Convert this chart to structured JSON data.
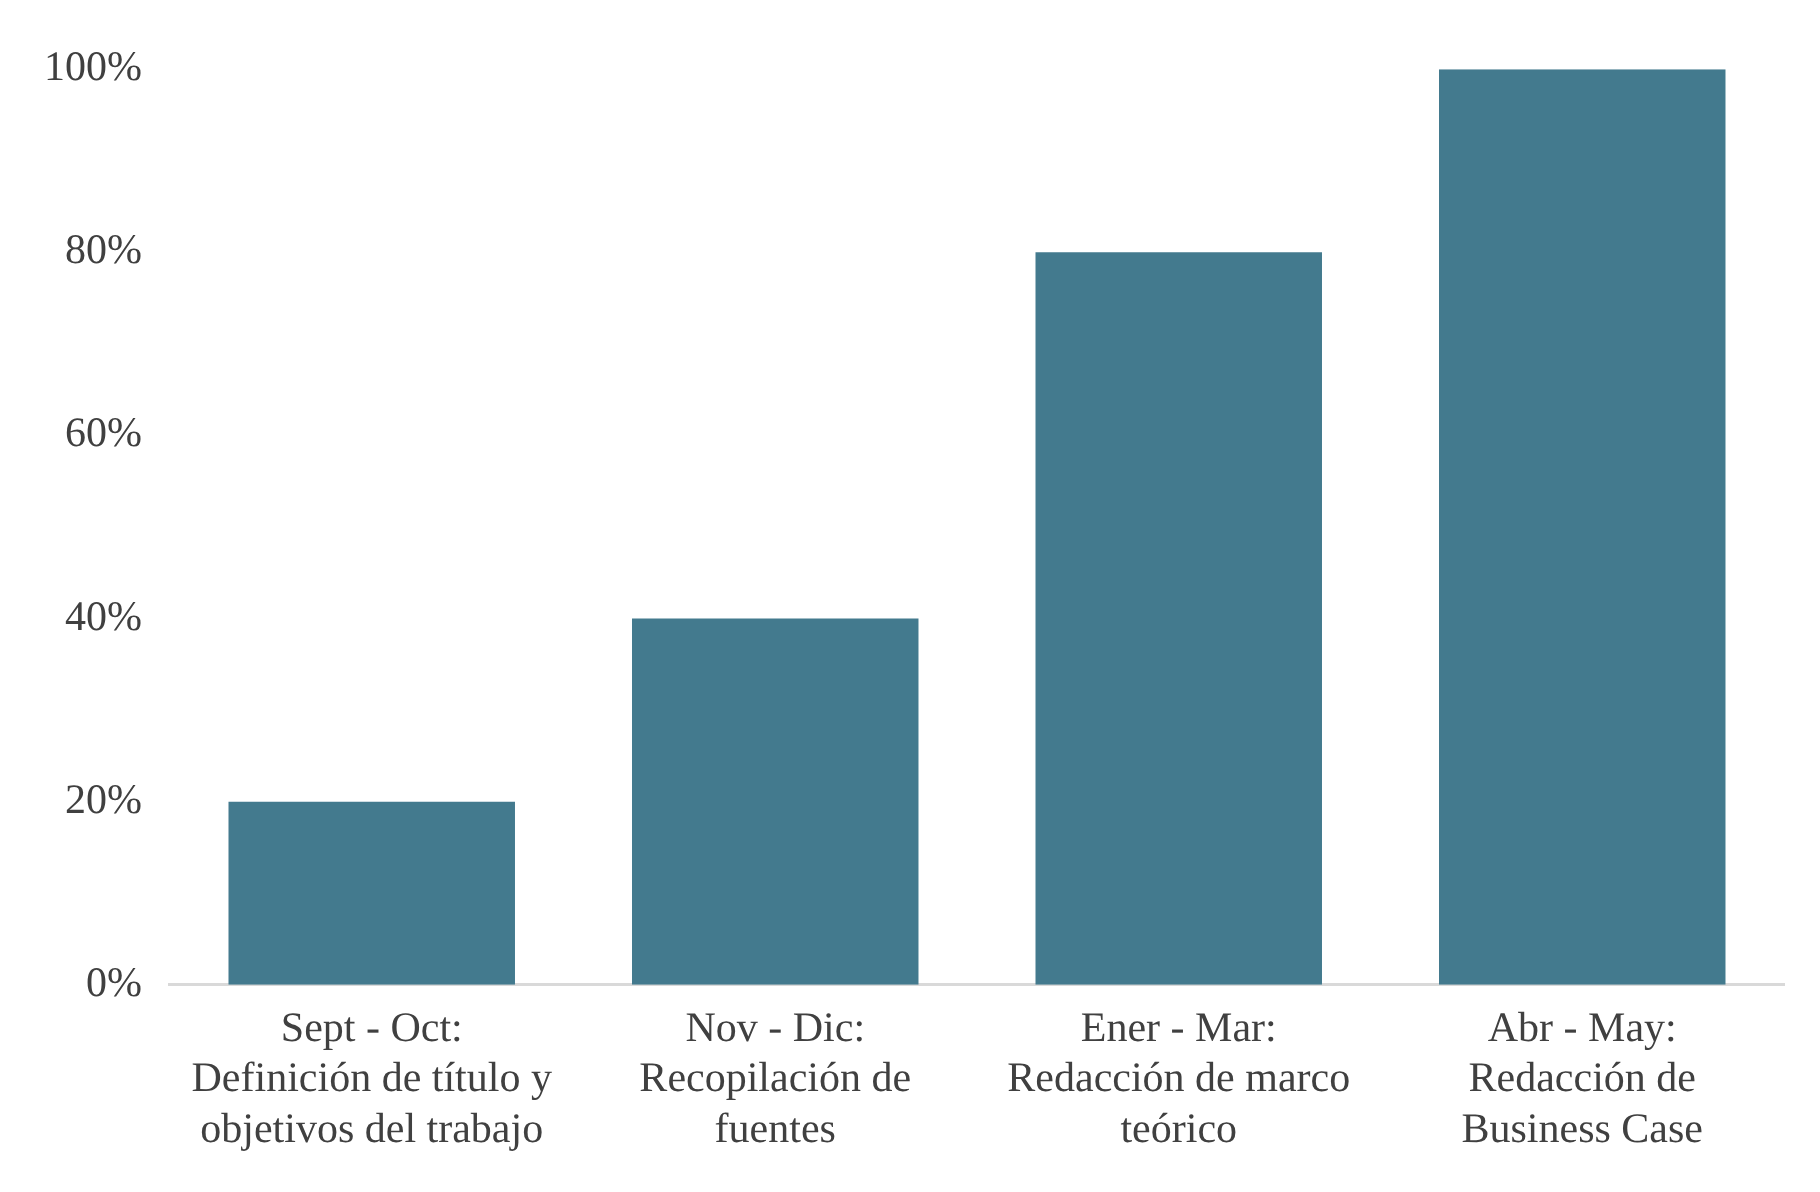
{
  "chart_data": {
    "type": "bar",
    "categories": [
      "Sept - Oct:\nDefinición de título y\nobjetivos del trabajo",
      "Nov - Dic:\nRecopilación de\nfuentes",
      "Ener - Mar:\nRedacción de marco\nteórico",
      "Abr - May:\nRedacción de\nBusiness Case"
    ],
    "values": [
      20,
      40,
      80,
      100
    ],
    "color": "#437a8e",
    "ylim": [
      0,
      100
    ],
    "yticks": [
      {
        "value": 0,
        "label": "0%"
      },
      {
        "value": 20,
        "label": "20%"
      },
      {
        "value": 40,
        "label": "40%"
      },
      {
        "value": 60,
        "label": "60%"
      },
      {
        "value": 80,
        "label": "80%"
      },
      {
        "value": 100,
        "label": "100%"
      }
    ],
    "grid": false,
    "legend": false
  }
}
